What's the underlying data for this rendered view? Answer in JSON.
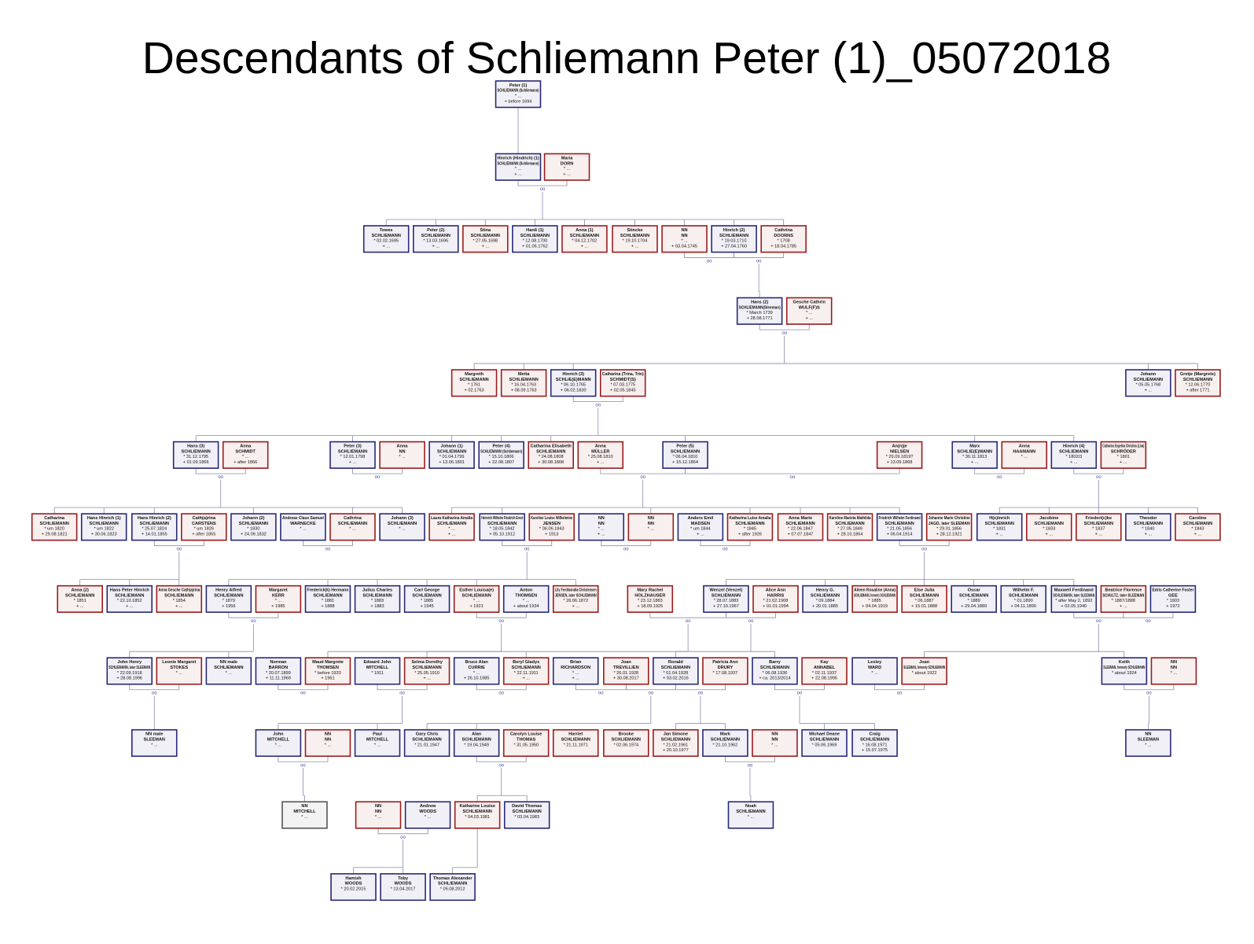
{
  "title": "Descendants of Schliemann Peter (1)_05072018",
  "marriage_symbol": "oo",
  "nodes": [
    {
      "lines": [
        "Peter (1)",
        "SCHLIEMANN (Schliemann)",
        "* ...",
        "+ before 1694"
      ],
      "color": "#28287a"
    },
    {
      "lines": [
        "Hinrich (Hindrich) (1)",
        "SCHLIEMANN (Schliemann)",
        "* ...",
        "+ ..."
      ],
      "color": "#28287a"
    },
    {
      "lines": [
        "Maria",
        "DORN",
        "* ...",
        "+ ..."
      ],
      "color": "#9a1c1c"
    },
    {
      "lines": [
        "Tewes",
        "SCHLIEMANN",
        "* 02.02.1695",
        "+ ..."
      ],
      "color": "#28287a"
    },
    {
      "lines": [
        "Peter (2)",
        "SCHLIEMANN",
        "* 13.03.1696",
        "+ ..."
      ],
      "color": "#28287a"
    },
    {
      "lines": [
        "Stina",
        "SCHLIEMANN",
        "* 27.05.1698",
        "+ ..."
      ],
      "color": "#9a1c1c"
    },
    {
      "lines": [
        "Hanß (1)",
        "SCHLIEMANN",
        "* 12.08.1700",
        "+ 01.06.1762"
      ],
      "color": "#28287a"
    },
    {
      "lines": [
        "Anna (1)",
        "SCHLIEMANN",
        "* 04.12.1702",
        "+ ..."
      ],
      "color": "#9a1c1c"
    },
    {
      "lines": [
        "Stincke",
        "SCHLIEMANN",
        "* 19.10.1704",
        "+ ..."
      ],
      "color": "#9a1c1c"
    },
    {
      "lines": [
        "NN",
        "NN",
        "* ...",
        "+ 03.04.1745"
      ],
      "color": "#9a1c1c"
    },
    {
      "lines": [
        "Hinrich (2)",
        "SCHLIEMANN",
        "* 19.03.1710",
        "+ 27.04.1760"
      ],
      "color": "#28287a"
    },
    {
      "lines": [
        "Cathrina",
        "DOORNS",
        "* 1708",
        "+ 18.04.1785"
      ],
      "color": "#9a1c1c"
    },
    {
      "lines": [
        "Hans (2)",
        "SCHLIEMANN(Sleeman)",
        "* March 1739",
        "+ 28.08.1771"
      ],
      "color": "#28287a"
    },
    {
      "lines": [
        "Gesche Cathrin",
        "WULF(F)S",
        "* ...",
        "+ ..."
      ],
      "color": "#9a1c1c"
    },
    {
      "lines": [
        "Margreth",
        "SCHLIEMANN",
        "* 1761",
        "+ 02.1763"
      ],
      "color": "#9a1c1c"
    },
    {
      "lines": [
        "Metta",
        "SCHLIEMANN",
        "* 16.04.1763",
        "+ 08.09.1763"
      ],
      "color": "#9a1c1c"
    },
    {
      "lines": [
        "Hinrich (3)",
        "SCHLIE(E)MANN",
        "* 06.10.1765",
        "+ 06.02.1830"
      ],
      "color": "#28287a"
    },
    {
      "lines": [
        "Catharina (Trina, Trin)",
        "SCHMIDT(S)",
        "* 07.03.1775",
        "+ 02.05.1845"
      ],
      "color": "#9a1c1c"
    },
    {
      "lines": [
        "Johann",
        "SCHLIEMANN",
        "* 05.05.1768",
        "+ ..."
      ],
      "color": "#28287a"
    },
    {
      "lines": [
        "Gretje (Margrete)",
        "SCHLIEMANN",
        "* 12.06.1770",
        "+ after 1771"
      ],
      "color": "#9a1c1c"
    },
    {
      "lines": [
        "Hans (3)",
        "SCHLIEMANN",
        "* 31.12.1795",
        "+ 01.09.1866"
      ],
      "color": "#28287a"
    },
    {
      "lines": [
        "Anna",
        "SCHMIDT",
        "* ...",
        "+ after 1866"
      ],
      "color": "#9a1c1c"
    },
    {
      "lines": [
        "Peter (3)",
        "SCHLIEMANN",
        "* 12.01.1798",
        "+ ..."
      ],
      "color": "#28287a"
    },
    {
      "lines": [
        "Anna",
        "NN",
        "* ..."
      ],
      "color": "#9a1c1c"
    },
    {
      "lines": [
        "Johann (1)",
        "SCHLIEMANN",
        "* 01.04.1799",
        "+ 13.06.1801"
      ],
      "color": "#28287a"
    },
    {
      "lines": [
        "Peter (4)",
        "SCHLIEMANN (Schliemann)",
        "* 15.10.1806",
        "+ 22.08.1807"
      ],
      "color": "#28287a"
    },
    {
      "lines": [
        "Catharina Elisabeth",
        "SCHLIEMANN",
        "* 24.08.1808",
        "+ 30.08.1808"
      ],
      "color": "#9a1c1c"
    },
    {
      "lines": [
        "Anna",
        "MÜLLER",
        "* 25.08.1810",
        "+ ..."
      ],
      "color": "#9a1c1c"
    },
    {
      "lines": [
        "Peter (5)",
        "SCHLIEMANN",
        "* 06.04.1810",
        "+ 15.12.1864"
      ],
      "color": "#28287a"
    },
    {
      "lines": [
        "An(n)je",
        "NIELSEN",
        "* 29.09.1819?",
        "+ 13.09.1868"
      ],
      "color": "#9a1c1c"
    },
    {
      "lines": [
        "Marx",
        "SCHLIE(E)MANN",
        "* 30.11.1813",
        "+ ..."
      ],
      "color": "#28287a"
    },
    {
      "lines": [
        "Anna",
        "HAAMANN",
        "* ..."
      ],
      "color": "#9a1c1c"
    },
    {
      "lines": [
        "Hinrich (4)",
        "SCHLIEMANN",
        "* 1802/3",
        "+ ..."
      ],
      "color": "#28287a"
    },
    {
      "lines": [
        "Catharina Engelina Christina (Lina)",
        "SCHRÖDER",
        "* 1801",
        "+ ..."
      ],
      "color": "#9a1c1c"
    },
    {
      "lines": [
        "Catharina",
        "SCHLIEMANN",
        "* um 1820",
        "+ 29.08.1821"
      ],
      "color": "#9a1c1c"
    },
    {
      "lines": [
        "Hans Hinrich (1)",
        "SCHLIEMANN",
        "* um 1822",
        "+ 30.06.1823"
      ],
      "color": "#28287a"
    },
    {
      "lines": [
        "Hans Hinrich (2)",
        "SCHLIEMANN",
        "* 25.07.1824",
        "+ 14.01.1855"
      ],
      "color": "#28287a"
    },
    {
      "lines": [
        "Cath(a)rina",
        "CARSTENS",
        "* um 1826",
        "+ after 1855"
      ],
      "color": "#9a1c1c"
    },
    {
      "lines": [
        "Johann (2)",
        "SCHLIEMANN",
        "* 1830",
        "+ 24.09.1832"
      ],
      "color": "#28287a"
    },
    {
      "lines": [
        "Andreas Claus Samuel",
        "WARNECKE",
        "* ..."
      ],
      "color": "#28287a"
    },
    {
      "lines": [
        "Cathrina",
        "SCHLIEMANN",
        "* ..."
      ],
      "color": "#9a1c1c"
    },
    {
      "lines": [
        "Johann (3)",
        "SCHLIEMANN",
        "* ..."
      ],
      "color": "#28287a"
    },
    {
      "lines": [
        "Laura Katharina Amalia",
        "SCHLIEMANN",
        "* ...",
        "+ ..."
      ],
      "color": "#9a1c1c"
    },
    {
      "lines": [
        "Heinrich Wilhelm Friedrich Ernst",
        "SCHLIEMANN",
        "* 18.05.1842",
        "+ 05.10.1912"
      ],
      "color": "#28287a"
    },
    {
      "lines": [
        "Karoline Louise Wilhelmine",
        "JENSEN",
        "* 06.06.1843",
        "+ 1913"
      ],
      "color": "#9a1c1c"
    },
    {
      "lines": [
        "NN",
        "NN",
        "* ...",
        "+ ..."
      ],
      "color": "#28287a"
    },
    {
      "lines": [
        "NN",
        "NN",
        "* ..."
      ],
      "color": "#9a1c1c"
    },
    {
      "lines": [
        "Anders Emil",
        "MADSEN",
        "* um 1844",
        "+ ..."
      ],
      "color": "#28287a"
    },
    {
      "lines": [
        "Katharina Luise Amalia",
        "SCHLIEMANN",
        "* 1845",
        "+ after 1926"
      ],
      "color": "#9a1c1c"
    },
    {
      "lines": [
        "Anna Marie",
        "SCHLIEMANN",
        "* 22.06.1847",
        "+ 07.07.1847"
      ],
      "color": "#9a1c1c"
    },
    {
      "lines": [
        "Karoline Marieta Mathilda",
        "SCHLIEMANN",
        "* 27.05.1849",
        "+ 28.10.1864"
      ],
      "color": "#9a1c1c"
    },
    {
      "lines": [
        "Friedrich Wilhelm Ferdinand",
        "SCHLIEMANN",
        "* 21.05.1856",
        "+ 06.04.1914"
      ],
      "color": "#28287a"
    },
    {
      "lines": [
        "Johanne Marie Christine",
        "JAGD, later SLEEMAN",
        "* 29.01.1856",
        "+ 28.12.1921"
      ],
      "color": "#9a1c1c"
    },
    {
      "lines": [
        "H(e)inrich",
        "SCHLIEMANN",
        "* 1831",
        "+ ..."
      ],
      "color": "#28287a"
    },
    {
      "lines": [
        "Jacobine",
        "SCHLIEMANN",
        "* 1833",
        "+ ..."
      ],
      "color": "#9a1c1c"
    },
    {
      "lines": [
        "Friederi(c)ke",
        "SCHLIEMANN",
        "* 1837",
        "+ ..."
      ],
      "color": "#9a1c1c"
    },
    {
      "lines": [
        "Theodor",
        "SCHLIEMANN",
        "* 1840",
        "+ ..."
      ],
      "color": "#28287a"
    },
    {
      "lines": [
        "Caroline",
        "SCHLIEMANN",
        "* 1843",
        "+ ..."
      ],
      "color": "#9a1c1c"
    },
    {
      "lines": [
        "Anna (2)",
        "SCHLIEMANN",
        "* 1851",
        "+ ..."
      ],
      "color": "#9a1c1c"
    },
    {
      "lines": [
        "Hans Peter Hinrich",
        "SCHLIEMANN",
        "* 22.10.1852",
        "+ ..."
      ],
      "color": "#28287a"
    },
    {
      "lines": [
        "Anna Gesche Cath(a)rina",
        "SCHLIEMANN",
        "* 1854",
        "+ ..."
      ],
      "color": "#9a1c1c"
    },
    {
      "lines": [
        "Henry Alfred",
        "SCHLIEMANN",
        "* 1879",
        "+ 1956"
      ],
      "color": "#28287a"
    },
    {
      "lines": [
        "Margaret",
        "KERR",
        "* ...",
        "+ 1985"
      ],
      "color": "#9a1c1c"
    },
    {
      "lines": [
        "Frederick(k) Hermann",
        "SCHLIEMANN",
        "* 1881",
        "+ 1888"
      ],
      "color": "#28287a"
    },
    {
      "lines": [
        "Julius Charles",
        "SCHLIEMANN",
        "* 1883",
        "+ 1883"
      ],
      "color": "#28287a"
    },
    {
      "lines": [
        "Carl George",
        "SCHLIEMANN",
        "* 1885",
        "+ 1945"
      ],
      "color": "#28287a"
    },
    {
      "lines": [
        "Esther Louisa(e)",
        "SCHLIEMANN",
        "* ...",
        "+ 1921"
      ],
      "color": "#9a1c1c"
    },
    {
      "lines": [
        "Anton",
        "THOMSEN",
        "* ...",
        "+ about 1934"
      ],
      "color": "#28287a"
    },
    {
      "lines": [
        "Lily Ferdinandia Christensen",
        "JENSEN, later SCHLIEMANN",
        "* 26.06.1872",
        "+ ..."
      ],
      "color": "#9a1c1c"
    },
    {
      "lines": [
        "Mary Rachel",
        "HOLZHAUSER",
        "* 23.12.1883",
        "+ 18.09.1925"
      ],
      "color": "#9a1c1c"
    },
    {
      "lines": [
        "Wenzel (Venzel)",
        "SCHLIEMANN",
        "* 28.07.1883",
        "+ 27.10.1967"
      ],
      "color": "#28287a"
    },
    {
      "lines": [
        "Alice Ann",
        "HARRIS",
        "* 21.02.1908",
        "+ 01.01.1994"
      ],
      "color": "#9a1c1c"
    },
    {
      "lines": [
        "Henry G.",
        "SCHLIEMANN",
        "* 09.1884",
        "+ 20.01.1885"
      ],
      "color": "#28287a"
    },
    {
      "lines": [
        "Aileen Rosaline (Anna)",
        "SCHLIEMANN, formerly SCHLIEMANN",
        "* 1885",
        "+ 04.04.1919"
      ],
      "color": "#9a1c1c"
    },
    {
      "lines": [
        "Else Julia",
        "SCHLIEMANN",
        "* 06.1887",
        "+ 15.01.1888"
      ],
      "color": "#9a1c1c"
    },
    {
      "lines": [
        "Oscar",
        "SCHLIEMANN",
        "* 1889",
        "+ 29.04.1889"
      ],
      "color": "#28287a"
    },
    {
      "lines": [
        "Wilhelm F.",
        "SCHLIEMANN",
        "* 01.1890",
        "+ 04.11.1890"
      ],
      "color": "#28287a"
    },
    {
      "lines": [
        "Maxwell Ferdinand",
        "SCHLIEMANN, later SLEEMAN",
        "* after May 2, 1892",
        "+ 02.05.1940"
      ],
      "color": "#28287a"
    },
    {
      "lines": [
        "Beatrice Florence",
        "SCHULTZ, later SLEEMAN",
        "* 1887/1888",
        "+ ..."
      ],
      "color": "#9a1c1c"
    },
    {
      "lines": [
        "Edris Catherine Foster",
        "GEE",
        "* 1903",
        "+ 1972"
      ],
      "color": "#28287a"
    },
    {
      "lines": [
        "John Henry",
        "SCHLIEMANN, later SLEEMAN",
        "* 22.09.1918",
        "+ 28.08.1996"
      ],
      "color": "#28287a"
    },
    {
      "lines": [
        "Leonie Margaret",
        "STOKES",
        "* ..."
      ],
      "color": "#9a1c1c"
    },
    {
      "lines": [
        "NN male",
        "SCHLIEMANN",
        "* ..."
      ],
      "color": "#28287a"
    },
    {
      "lines": [
        "Norman",
        "BARRON",
        "* 20.07.1899",
        "+ 11.11.1969"
      ],
      "color": "#28287a"
    },
    {
      "lines": [
        "Maud Margrete",
        "THOMSEN",
        "* before 1920",
        "+ 1961"
      ],
      "color": "#9a1c1c"
    },
    {
      "lines": [
        "Edward John",
        "MITCHELL",
        "* 1911"
      ],
      "color": "#28287a"
    },
    {
      "lines": [
        "Selma Dorothy",
        "SCHLIEMANN",
        "* 25.05.1910",
        "+ ..."
      ],
      "color": "#9a1c1c"
    },
    {
      "lines": [
        "Bruce Alan",
        "CURRIE",
        "* ...",
        "+ 26.10.1985"
      ],
      "color": "#28287a"
    },
    {
      "lines": [
        "Beryl Gladys",
        "SCHLIEMANN",
        "* 22.11.1911",
        "+ ..."
      ],
      "color": "#9a1c1c"
    },
    {
      "lines": [
        "Brian",
        "RICHARDSON",
        "* ...",
        "+ ..."
      ],
      "color": "#28287a"
    },
    {
      "lines": [
        "Joan",
        "TREVILLIEN",
        "* 26.01.1928",
        "+ 30.08.2017"
      ],
      "color": "#9a1c1c"
    },
    {
      "lines": [
        "Ronald",
        "SCHLIEMANN",
        "* 01.04.1928",
        "+ 03.02.2016"
      ],
      "color": "#28287a"
    },
    {
      "lines": [
        "Patricia Ann",
        "DRURY",
        "* 17.08.1937"
      ],
      "color": "#9a1c1c"
    },
    {
      "lines": [
        "Barry",
        "SCHLIEMANN",
        "* 06.08.1936",
        "+ ca. 2013/2014"
      ],
      "color": "#28287a"
    },
    {
      "lines": [
        "Kay",
        "ANNABEL",
        "* 02.11.1937",
        "+ 22.08.1995"
      ],
      "color": "#9a1c1c"
    },
    {
      "lines": [
        "Lesley",
        "WARD",
        "* ..."
      ],
      "color": "#28287a"
    },
    {
      "lines": [
        "Joan",
        "SLEEMAN, formerly SCHLIEMANN",
        "* about 1922"
      ],
      "color": "#9a1c1c"
    },
    {
      "lines": [
        "Keith",
        "SLEEMAN, formerly SCHLIEMANN",
        "* about 1924"
      ],
      "color": "#28287a"
    },
    {
      "lines": [
        "NN",
        "NN",
        "* ..."
      ],
      "color": "#9a1c1c"
    },
    {
      "lines": [
        "NN male",
        "SLEEMAN",
        "* ..."
      ],
      "color": "#28287a"
    },
    {
      "lines": [
        "John",
        "MITCHELL",
        "* ..."
      ],
      "color": "#28287a"
    },
    {
      "lines": [
        "NN",
        "NN",
        "* ..."
      ],
      "color": "#9a1c1c"
    },
    {
      "lines": [
        "Paul",
        "MITCHELL",
        "* ..."
      ],
      "color": "#28287a"
    },
    {
      "lines": [
        "Gary Chris",
        "SCHLIEMANN",
        "* 21.01.1947"
      ],
      "color": "#28287a"
    },
    {
      "lines": [
        "Alan",
        "SCHLIEMANN",
        "* 19.04.1949"
      ],
      "color": "#28287a"
    },
    {
      "lines": [
        "Carolyn Louise",
        "THOMAS",
        "* 31.05.1950"
      ],
      "color": "#9a1c1c"
    },
    {
      "lines": [
        "Harriet",
        "SCHLIEMANN",
        "* 21.11.1971"
      ],
      "color": "#9a1c1c"
    },
    {
      "lines": [
        "Brooke",
        "SCHLIEMANN",
        "* 02.06.1974"
      ],
      "color": "#9a1c1c"
    },
    {
      "lines": [
        "Jan Simone",
        "SCHLIEMANN",
        "* 21.02.1961",
        "+ 20.10.1977"
      ],
      "color": "#9a1c1c"
    },
    {
      "lines": [
        "Mark",
        "SCHLIEMANN",
        "* 21.10.1962"
      ],
      "color": "#28287a"
    },
    {
      "lines": [
        "NN",
        "NN",
        "* ..."
      ],
      "color": "#9a1c1c"
    },
    {
      "lines": [
        "Michael Deane",
        "SCHLIEMANN",
        "* 05.06.1969"
      ],
      "color": "#28287a"
    },
    {
      "lines": [
        "Craig",
        "SCHLIEMANN",
        "* 16.08.1971",
        "+ 15.07.1975"
      ],
      "color": "#28287a"
    },
    {
      "lines": [
        "NN",
        "SLEEMAN",
        "* ..."
      ],
      "color": "#28287a"
    },
    {
      "lines": [
        "NN",
        "MITCHELL",
        "* ..."
      ],
      "color": "#555555"
    },
    {
      "lines": [
        "NN",
        "NN",
        "* ..."
      ],
      "color": "#9a1c1c"
    },
    {
      "lines": [
        "Andrew",
        "WOODS",
        "* ..."
      ],
      "color": "#28287a"
    },
    {
      "lines": [
        "Katharine Louise",
        "SCHLIEMANN",
        "* 04.03.1981"
      ],
      "color": "#9a1c1c"
    },
    {
      "lines": [
        "David Thomas",
        "SCHLIEMANN",
        "* 03.04.1983"
      ],
      "color": "#28287a"
    },
    {
      "lines": [
        "Noah",
        "SCHLIEMANN",
        "* ..."
      ],
      "color": "#28287a"
    },
    {
      "lines": [
        "Hamish",
        "WOODS",
        "* 20.02.2015"
      ],
      "color": "#28287a"
    },
    {
      "lines": [
        "Toby",
        "WOODS",
        "* 13.04.2017"
      ],
      "color": "#28287a"
    },
    {
      "lines": [
        "Thomas Alexander",
        "SCHLIEMANN",
        "* 05.08.2012"
      ],
      "color": "#28287a"
    }
  ]
}
